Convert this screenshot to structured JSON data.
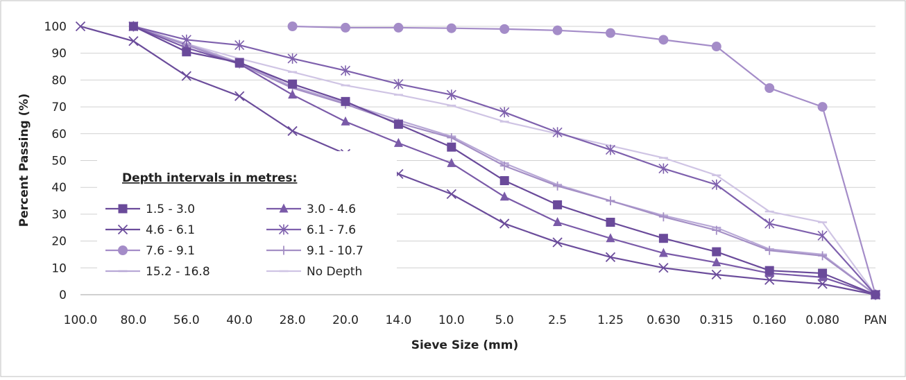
{
  "chart_data": {
    "type": "line",
    "title": "",
    "xlabel": "Sieve Size (mm)",
    "ylabel": "Percent Passing (%)",
    "ylim": [
      0,
      100
    ],
    "yticks": [
      0,
      10,
      20,
      30,
      40,
      50,
      60,
      70,
      80,
      90,
      100
    ],
    "categories": [
      "100.0",
      "80.0",
      "56.0",
      "40.0",
      "28.0",
      "20.0",
      "14.0",
      "10.0",
      "5.0",
      "2.5",
      "1.25",
      "0.630",
      "0.315",
      "0.160",
      "0.080",
      "PAN"
    ],
    "grid": "horizontal",
    "legend": {
      "title": "Depth intervals in metres:",
      "placement": "center-left"
    },
    "series": [
      {
        "name": "1.5 - 3.0",
        "marker": "square",
        "color": "#6a4a9a",
        "values": [
          null,
          100,
          90.5,
          86.5,
          78.5,
          72,
          63.5,
          55,
          42.5,
          33.5,
          27,
          21,
          16,
          9,
          8,
          0
        ]
      },
      {
        "name": "3.0 - 4.6",
        "marker": "triangle",
        "color": "#7a5aa8",
        "values": [
          null,
          100,
          92,
          86,
          74.5,
          64.5,
          56.5,
          49,
          36.5,
          27,
          21,
          15.5,
          12,
          8,
          6.5,
          0
        ]
      },
      {
        "name": "4.6 - 6.1",
        "marker": "x",
        "color": "#6b4c9b",
        "values": [
          100,
          94.5,
          81.5,
          74,
          61,
          52.5,
          45,
          37.5,
          26.5,
          19.5,
          14,
          10,
          7.5,
          5.5,
          4,
          0
        ]
      },
      {
        "name": "6.1 - 7.6",
        "marker": "star",
        "color": "#7e60ad",
        "values": [
          null,
          100,
          95,
          93,
          88,
          83.5,
          78.5,
          74.5,
          68,
          60.5,
          54,
          47,
          41,
          26.5,
          22,
          0
        ]
      },
      {
        "name": "7.6 - 9.1",
        "marker": "circle",
        "color": "#a48cc8",
        "values": [
          null,
          null,
          null,
          null,
          100,
          99.5,
          99.5,
          99.3,
          99,
          98.5,
          97.5,
          95,
          92.5,
          77,
          70,
          0
        ]
      },
      {
        "name": "9.1 - 10.7",
        "marker": "plus",
        "color": "#a48fc5",
        "values": [
          null,
          100,
          93,
          86,
          77,
          71,
          64,
          58.5,
          48,
          40.5,
          35,
          29,
          24,
          16.5,
          14.5,
          0
        ]
      },
      {
        "name": "15.2 - 16.8",
        "marker": "dash",
        "color": "#b8a8d6",
        "values": [
          null,
          100,
          93.5,
          86.5,
          77.5,
          71.5,
          65,
          59,
          49,
          41,
          35,
          29.5,
          25,
          17,
          15,
          0
        ]
      },
      {
        "name": "No Depth",
        "marker": "dash",
        "color": "#cfc4e4",
        "values": [
          null,
          100,
          93.5,
          88,
          83,
          78,
          74.5,
          70.5,
          64.5,
          60,
          55.5,
          51,
          44.5,
          31,
          27,
          0
        ]
      }
    ]
  }
}
